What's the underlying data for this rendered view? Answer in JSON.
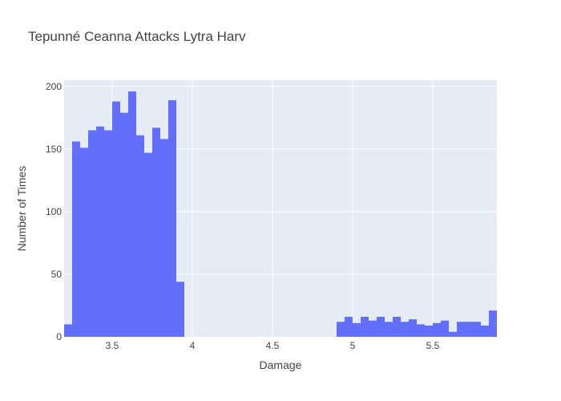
{
  "chart_data": {
    "type": "bar",
    "title": "Tepunné Ceanna Attacks Lytra Harv",
    "xlabel": "Damage",
    "ylabel": "Number of Times",
    "xlim": [
      3.2,
      5.9
    ],
    "ylim": [
      0,
      205
    ],
    "bin_width": 0.05,
    "x_ticks": [
      3.5,
      4,
      4.5,
      5,
      5.5
    ],
    "y_ticks": [
      0,
      50,
      100,
      150,
      200
    ],
    "x_tick_labels": [
      "3.5",
      "4",
      "4.5",
      "5",
      "5.5"
    ],
    "y_tick_labels": [
      "0",
      "50",
      "100",
      "150",
      "200"
    ],
    "grid": true,
    "colors": {
      "bar": "#636efa",
      "plot_bg": "#e5ecf6",
      "grid": "#ffffff"
    },
    "bins_start": [
      3.2,
      3.25,
      3.3,
      3.35,
      3.4,
      3.45,
      3.5,
      3.55,
      3.6,
      3.65,
      3.7,
      3.75,
      3.8,
      3.85,
      3.9,
      3.95,
      4.0,
      4.05,
      4.1,
      4.15,
      4.2,
      4.25,
      4.3,
      4.35,
      4.4,
      4.45,
      4.5,
      4.55,
      4.6,
      4.65,
      4.7,
      4.75,
      4.8,
      4.85,
      4.9,
      4.95,
      5.0,
      5.05,
      5.1,
      5.15,
      5.2,
      5.25,
      5.3,
      5.35,
      5.4,
      5.45,
      5.5,
      5.55,
      5.6,
      5.65,
      5.7,
      5.75,
      5.8,
      5.85
    ],
    "values": [
      10,
      156,
      151,
      165,
      168,
      165,
      188,
      179,
      196,
      161,
      147,
      167,
      158,
      189,
      44,
      0,
      0,
      0,
      0,
      0,
      0,
      0,
      0,
      0,
      0,
      0,
      0,
      0,
      0,
      0,
      0,
      0,
      0,
      0,
      12,
      16,
      11,
      16,
      13,
      16,
      12,
      16,
      12,
      14,
      10,
      9,
      11,
      13,
      4,
      12,
      12,
      12,
      9,
      21
    ]
  }
}
